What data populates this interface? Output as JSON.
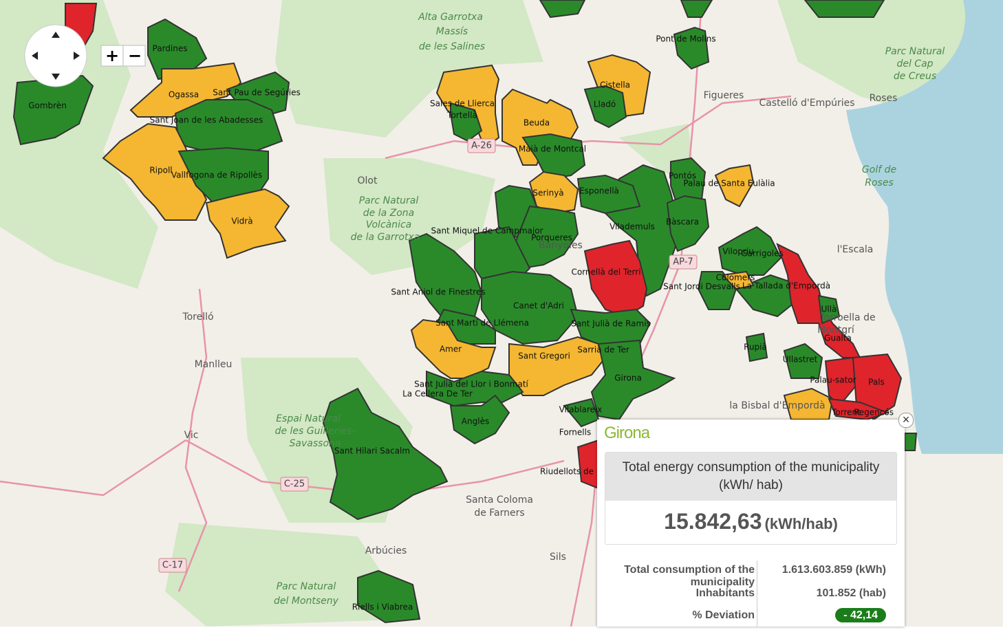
{
  "map": {
    "municipalities": [
      "Pardines",
      "Ogassa",
      "Sant Pau de Segúries",
      "Gombrèn",
      "Sant Joan de les Abadesses",
      "Ripoll",
      "Vallfogona de Ripollès",
      "Vidrà",
      "Sales de Llierca",
      "Tortellà",
      "Beuda",
      "Maià de Montcal",
      "Cistella",
      "Lladó",
      "Pont de Molins",
      "Pontós",
      "Palau de Santa Eulàlia",
      "Esponellà",
      "Serinyà",
      "Vilademuls",
      "Bàscara",
      "Sant Miquel de Campmajor",
      "Porqueres",
      "Cornellà del Terri",
      "Vilopriu",
      "Garrigoles",
      "Colomers",
      "Sant Jordi Desvalls",
      "La Tallada d'Empordà",
      "Ullà",
      "Gualta",
      "Sant Aniol de Finestres",
      "Canet d'Adri",
      "Sant Julià de Ramis",
      "Sant Martí de Llémena",
      "Amer",
      "Sant Gregori",
      "Sarrià de Ter",
      "Girona",
      "Sant Julià del Llor i Bonmatí",
      "La Cellera De Ter",
      "Anglès",
      "Vilablareix",
      "Fornells",
      "Riudellots de",
      "Sant Hilari Sacalm",
      "Riells i Viabrea",
      "Rupià",
      "Ullastret",
      "Palau-sator",
      "Pals",
      "Torrent",
      "Regencós"
    ],
    "places": [
      "Alta Garrotxa",
      "Massís",
      "de les Salines",
      "Parc Natural",
      "del Cap",
      "de Creus",
      "Figueres",
      "Castelló d'Empúries",
      "Roses",
      "Golf de",
      "Roses",
      "Olot",
      "Parc Natural",
      "de la Zona",
      "Volcànica",
      "de la Garrotxa",
      "Banyoles",
      "l'Escala",
      "Torroella de",
      "Montgrí",
      "Torelló",
      "Manlleu",
      "Vic",
      "Espai Natural",
      "de les Guilleries-",
      "Savassona",
      "Santa Coloma",
      "de Farners",
      "Arbúcies",
      "Sils",
      "Parc Natural",
      "del Montseny",
      "la Bisbal d'Empordà"
    ],
    "roads": [
      "A-26",
      "C-25",
      "C-17",
      "AP-7"
    ]
  },
  "controls": {
    "zoom_in": "+",
    "zoom_out": "−",
    "close": "×"
  },
  "popup": {
    "title": "Girona",
    "metric": "Total energy consumption of the municipality (kWh/ hab)",
    "value": "15.842,63",
    "unit": "(kWh/hab)",
    "rows": [
      [
        "Total consumption of the municipality",
        "1.613.603.859 (kWh)"
      ],
      [
        "Inhabitants",
        "101.852 (hab)"
      ],
      [
        "% Deviation",
        "- 42,14"
      ]
    ]
  }
}
